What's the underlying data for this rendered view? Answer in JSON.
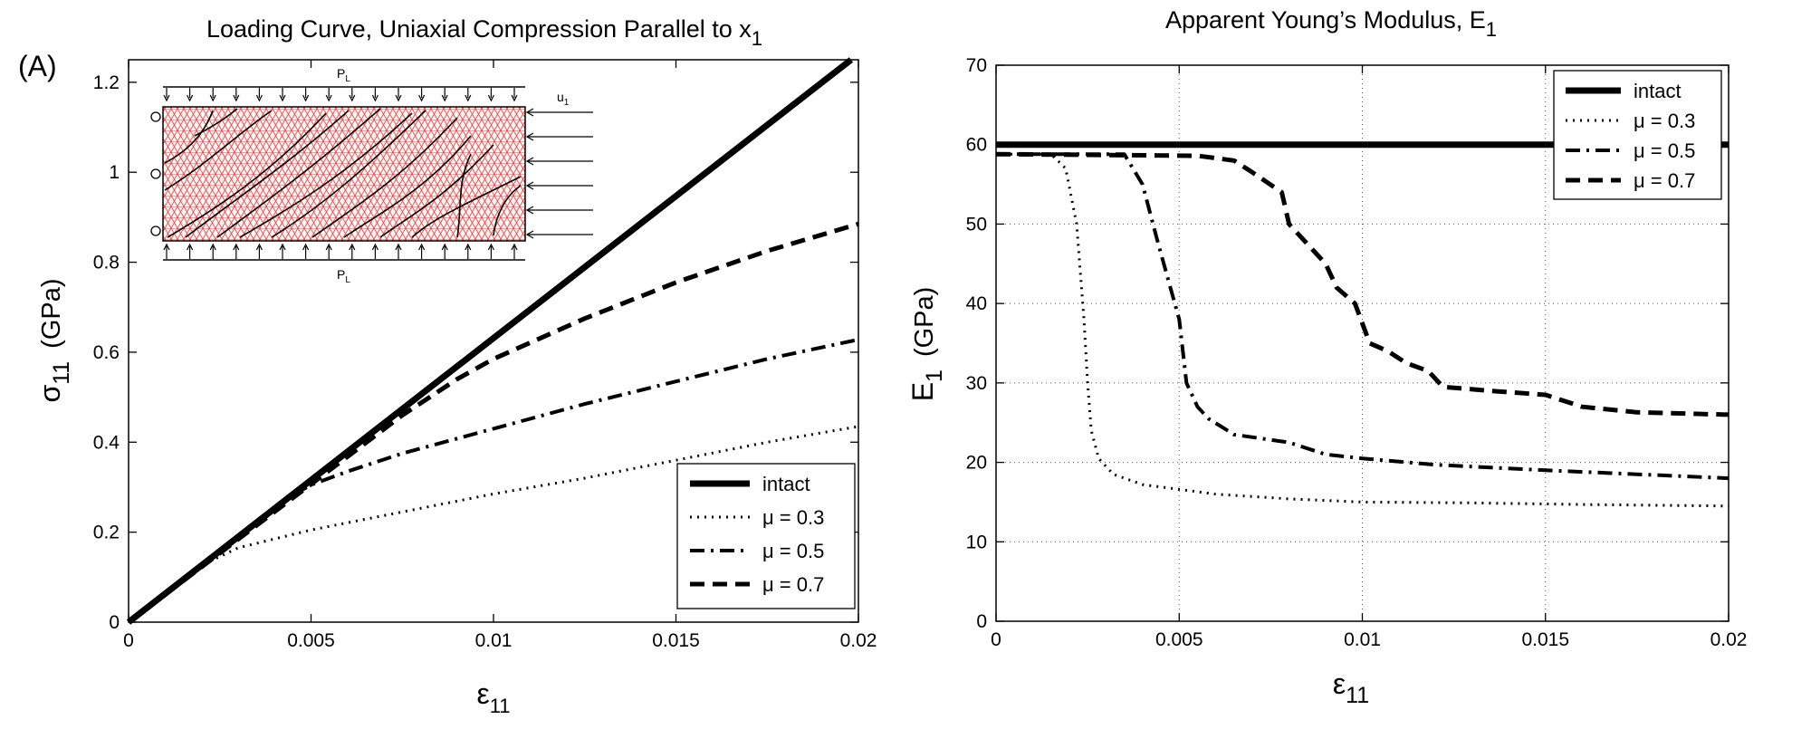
{
  "panel_label": "(A)",
  "styles": {
    "intact": {
      "color": "#000000",
      "width": 7,
      "dash": ""
    },
    "mu03": {
      "color": "#000000",
      "width": 3,
      "dash": "2,6"
    },
    "mu05": {
      "color": "#000000",
      "width": 4,
      "dash": "16,7,3,7"
    },
    "mu07": {
      "color": "#000000",
      "width": 5,
      "dash": "16,9"
    }
  },
  "inset": {
    "labels": {
      "pl_top": "P",
      "pl_top_sub": "L",
      "pl_bot": "P",
      "pl_bot_sub": "L",
      "u1": "u",
      "u1_sub": "1"
    }
  },
  "chart_data": [
    {
      "type": "line",
      "title": {
        "main": "Loading Curve, Uniaxial Compression Parallel to x",
        "sub": "1"
      },
      "xlabel": {
        "main": "ε",
        "sub": "11"
      },
      "ylabel": {
        "main": "σ",
        "sub": "11",
        "unit": "(GPa)"
      },
      "xlim": [
        0,
        0.02
      ],
      "ylim": [
        0,
        1.25
      ],
      "xticks": [
        0,
        0.005,
        0.01,
        0.015,
        0.02
      ],
      "xticklabels": [
        "0",
        "0.005",
        "0.01",
        "0.015",
        "0.02"
      ],
      "yticks": [
        0,
        0.2,
        0.4,
        0.6,
        0.8,
        1,
        1.2
      ],
      "yticklabels": [
        "0",
        "0.2",
        "0.4",
        "0.6",
        "0.8",
        "1",
        "1.2"
      ],
      "grid": false,
      "legend_position": "lower-right",
      "series": [
        {
          "name": "intact",
          "style": "intact",
          "points": [
            [
              0,
              0
            ],
            [
              0.0198,
              1.25
            ]
          ]
        },
        {
          "name": "μ = 0.3",
          "style": "mu03",
          "points": [
            [
              0,
              0
            ],
            [
              0.0022,
              0.134
            ],
            [
              0.003,
              0.165
            ],
            [
              0.005,
              0.205
            ],
            [
              0.0075,
              0.245
            ],
            [
              0.01,
              0.285
            ],
            [
              0.0125,
              0.32
            ],
            [
              0.015,
              0.36
            ],
            [
              0.0175,
              0.4
            ],
            [
              0.02,
              0.435
            ]
          ]
        },
        {
          "name": "μ = 0.5",
          "style": "mu05",
          "points": [
            [
              0,
              0
            ],
            [
              0.0045,
              0.283
            ],
            [
              0.005,
              0.305
            ],
            [
              0.006,
              0.335
            ],
            [
              0.0075,
              0.375
            ],
            [
              0.01,
              0.43
            ],
            [
              0.0125,
              0.485
            ],
            [
              0.015,
              0.535
            ],
            [
              0.0175,
              0.585
            ],
            [
              0.02,
              0.628
            ]
          ]
        },
        {
          "name": "μ = 0.7",
          "style": "mu07",
          "points": [
            [
              0,
              0
            ],
            [
              0.0075,
              0.46
            ],
            [
              0.009,
              0.54
            ],
            [
              0.01,
              0.585
            ],
            [
              0.0125,
              0.675
            ],
            [
              0.015,
              0.755
            ],
            [
              0.0175,
              0.825
            ],
            [
              0.02,
              0.885
            ]
          ]
        }
      ]
    },
    {
      "type": "line",
      "title": {
        "main": "Apparent Young’s Modulus,   E",
        "sub": "1"
      },
      "xlabel": {
        "main": "ε",
        "sub": "11"
      },
      "ylabel": {
        "main": "E",
        "sub": "1",
        "unit": "(GPa)"
      },
      "xlim": [
        0,
        0.02
      ],
      "ylim": [
        0,
        70
      ],
      "xticks": [
        0,
        0.005,
        0.01,
        0.015,
        0.02
      ],
      "xticklabels": [
        "0",
        "0.005",
        "0.01",
        "0.015",
        "0.02"
      ],
      "yticks": [
        0,
        10,
        20,
        30,
        40,
        50,
        60,
        70
      ],
      "yticklabels": [
        "0",
        "10",
        "20",
        "30",
        "40",
        "50",
        "60",
        "70"
      ],
      "grid": true,
      "legend_position": "top-right",
      "series": [
        {
          "name": "intact",
          "style": "intact",
          "points": [
            [
              0,
              60
            ],
            [
              0.02,
              60
            ]
          ]
        },
        {
          "name": "μ = 0.3",
          "style": "mu03",
          "points": [
            [
              0,
              58.8
            ],
            [
              0.0015,
              58.8
            ],
            [
              0.0019,
              57
            ],
            [
              0.0022,
              50
            ],
            [
              0.0024,
              38
            ],
            [
              0.0025,
              30
            ],
            [
              0.0026,
              24
            ],
            [
              0.0028,
              20.5
            ],
            [
              0.0032,
              18.5
            ],
            [
              0.004,
              17.2
            ],
            [
              0.006,
              16
            ],
            [
              0.008,
              15.4
            ],
            [
              0.01,
              15
            ],
            [
              0.013,
              14.9
            ],
            [
              0.016,
              14.7
            ],
            [
              0.02,
              14.5
            ]
          ]
        },
        {
          "name": "μ = 0.5",
          "style": "mu05",
          "points": [
            [
              0,
              58.8
            ],
            [
              0.0035,
              58.8
            ],
            [
              0.004,
              55
            ],
            [
              0.0044,
              48
            ],
            [
              0.0047,
              43
            ],
            [
              0.005,
              38
            ],
            [
              0.0052,
              30
            ],
            [
              0.0055,
              27
            ],
            [
              0.0058,
              25.5
            ],
            [
              0.0065,
              23.5
            ],
            [
              0.008,
              22.5
            ],
            [
              0.009,
              21
            ],
            [
              0.01,
              20.5
            ],
            [
              0.012,
              19.7
            ],
            [
              0.015,
              19
            ],
            [
              0.0175,
              18.5
            ],
            [
              0.02,
              18
            ]
          ]
        },
        {
          "name": "μ = 0.7",
          "style": "mu07",
          "points": [
            [
              0,
              58.8
            ],
            [
              0.0055,
              58.6
            ],
            [
              0.0065,
              58
            ],
            [
              0.007,
              56.5
            ],
            [
              0.0078,
              54
            ],
            [
              0.008,
              50
            ],
            [
              0.0085,
              47.5
            ],
            [
              0.009,
              45
            ],
            [
              0.0093,
              42
            ],
            [
              0.0098,
              40
            ],
            [
              0.0102,
              35
            ],
            [
              0.0107,
              34
            ],
            [
              0.0112,
              32.5
            ],
            [
              0.0118,
              31.5
            ],
            [
              0.0122,
              29.5
            ],
            [
              0.0135,
              29
            ],
            [
              0.015,
              28.5
            ],
            [
              0.016,
              27
            ],
            [
              0.0175,
              26.3
            ],
            [
              0.02,
              26
            ]
          ]
        }
      ]
    }
  ]
}
